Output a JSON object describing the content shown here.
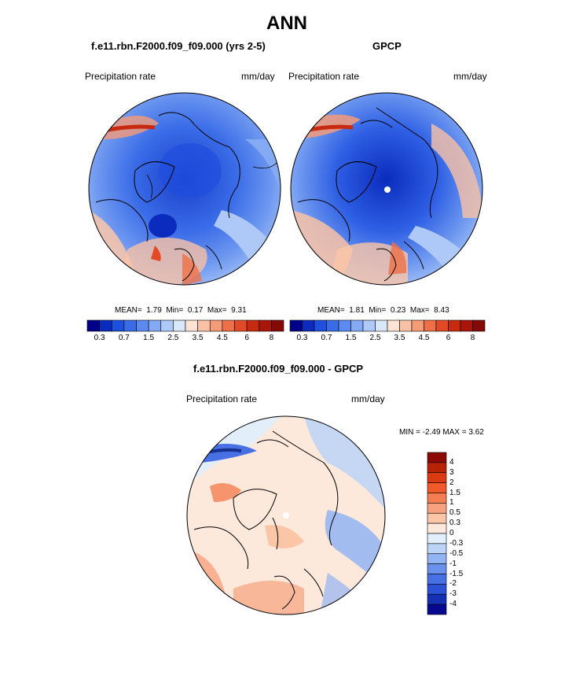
{
  "main_title": "ANN",
  "panels": [
    {
      "title": "f.e11.rbn.F2000.f09_f09.000 (yrs 2-5)",
      "left_label": "Precipitation rate",
      "right_label": "mm/day",
      "stats": {
        "mean_label": "MEAN=",
        "mean": "1.79",
        "min_label": "Min=",
        "min": "0.17",
        "max_label": "Max=",
        "max": "9.31"
      }
    },
    {
      "title": "GPCP",
      "left_label": "Precipitation rate",
      "right_label": "mm/day",
      "stats": {
        "mean_label": "MEAN=",
        "mean": "1.81",
        "min_label": "Min=",
        "min": "0.23",
        "max_label": "Max=",
        "max": "8.43"
      }
    },
    {
      "title": "f.e11.rbn.F2000.f09_f09.000 - GPCP",
      "left_label": "Precipitation rate",
      "right_label": "mm/day",
      "minmax_text": "MIN =  -2.49 MAX =   3.62"
    }
  ],
  "colorbar_main": {
    "colors": [
      "#00008b",
      "#0a2bbd",
      "#1f4fde",
      "#3a6ce8",
      "#5b8bf0",
      "#85aaf4",
      "#aec8f7",
      "#d8e7f9",
      "#fde3d4",
      "#f9c2a6",
      "#f49b78",
      "#ee7048",
      "#e24a25",
      "#c82a10",
      "#a8160a",
      "#840a08"
    ],
    "ticks": [
      "0.3",
      "0.7",
      "1.5",
      "2.5",
      "3.5",
      "4.5",
      "6",
      "8"
    ]
  },
  "colorbar_diff": {
    "colors_top_to_bottom": [
      "#8b0a05",
      "#b52207",
      "#dc3a12",
      "#f25a2a",
      "#f47e52",
      "#f7a27e",
      "#fbc6a8",
      "#fde8dc",
      "#e3eefb",
      "#bcd3f7",
      "#93b4f2",
      "#6a91ec",
      "#4670e3",
      "#2b52d4",
      "#1630b4",
      "#06088f"
    ],
    "ticks": [
      "4",
      "3",
      "2",
      "1.5",
      "1",
      "0.5",
      "0.3",
      "0",
      "-0.3",
      "-0.5",
      "-1",
      "-1.5",
      "-2",
      "-3",
      "-4"
    ]
  }
}
